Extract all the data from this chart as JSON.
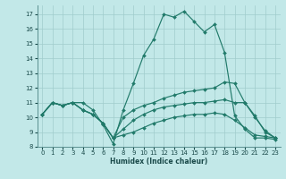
{
  "xlabel": "Humidex (Indice chaleur)",
  "bg_color": "#c2e8e8",
  "grid_color": "#a0cccc",
  "line_color": "#217a6a",
  "xlim": [
    -0.5,
    23.5
  ],
  "ylim": [
    8,
    17.6
  ],
  "yticks": [
    8,
    9,
    10,
    11,
    12,
    13,
    14,
    15,
    16,
    17
  ],
  "xticks": [
    0,
    1,
    2,
    3,
    4,
    5,
    6,
    7,
    8,
    9,
    10,
    11,
    12,
    13,
    14,
    15,
    16,
    17,
    18,
    19,
    20,
    21,
    22,
    23
  ],
  "lines": [
    {
      "x": [
        0,
        1,
        2,
        3,
        4,
        5,
        6,
        7,
        8,
        9,
        10,
        11,
        12,
        13,
        14,
        15,
        16,
        17,
        18,
        19,
        20,
        21,
        22,
        23
      ],
      "y": [
        10.2,
        11.0,
        10.8,
        11.0,
        11.0,
        10.5,
        9.5,
        8.2,
        10.5,
        12.3,
        14.2,
        15.3,
        17.0,
        16.8,
        17.2,
        16.5,
        15.8,
        16.3,
        14.4,
        10.1,
        9.2,
        8.6,
        8.6,
        8.5
      ]
    },
    {
      "x": [
        0,
        1,
        2,
        3,
        4,
        5,
        6,
        7,
        8,
        9,
        10,
        11,
        12,
        13,
        14,
        15,
        16,
        17,
        18,
        19,
        20,
        21,
        22,
        23
      ],
      "y": [
        10.2,
        11.0,
        10.8,
        11.0,
        10.5,
        10.2,
        9.6,
        8.6,
        10.0,
        10.5,
        10.8,
        11.0,
        11.3,
        11.5,
        11.7,
        11.8,
        11.9,
        12.0,
        12.4,
        12.3,
        11.0,
        10.1,
        9.0,
        8.6
      ]
    },
    {
      "x": [
        0,
        1,
        2,
        3,
        4,
        5,
        6,
        7,
        8,
        9,
        10,
        11,
        12,
        13,
        14,
        15,
        16,
        17,
        18,
        19,
        20,
        21,
        22,
        23
      ],
      "y": [
        10.2,
        11.0,
        10.8,
        11.0,
        10.5,
        10.2,
        9.6,
        8.6,
        9.2,
        9.8,
        10.2,
        10.5,
        10.7,
        10.8,
        10.9,
        11.0,
        11.0,
        11.1,
        11.2,
        11.0,
        11.0,
        10.0,
        9.1,
        8.6
      ]
    },
    {
      "x": [
        0,
        1,
        2,
        3,
        4,
        5,
        6,
        7,
        8,
        9,
        10,
        11,
        12,
        13,
        14,
        15,
        16,
        17,
        18,
        19,
        20,
        21,
        22,
        23
      ],
      "y": [
        10.2,
        11.0,
        10.8,
        11.0,
        10.5,
        10.2,
        9.6,
        8.6,
        8.8,
        9.0,
        9.3,
        9.6,
        9.8,
        10.0,
        10.1,
        10.2,
        10.2,
        10.3,
        10.2,
        9.8,
        9.3,
        8.8,
        8.7,
        8.6
      ]
    }
  ]
}
